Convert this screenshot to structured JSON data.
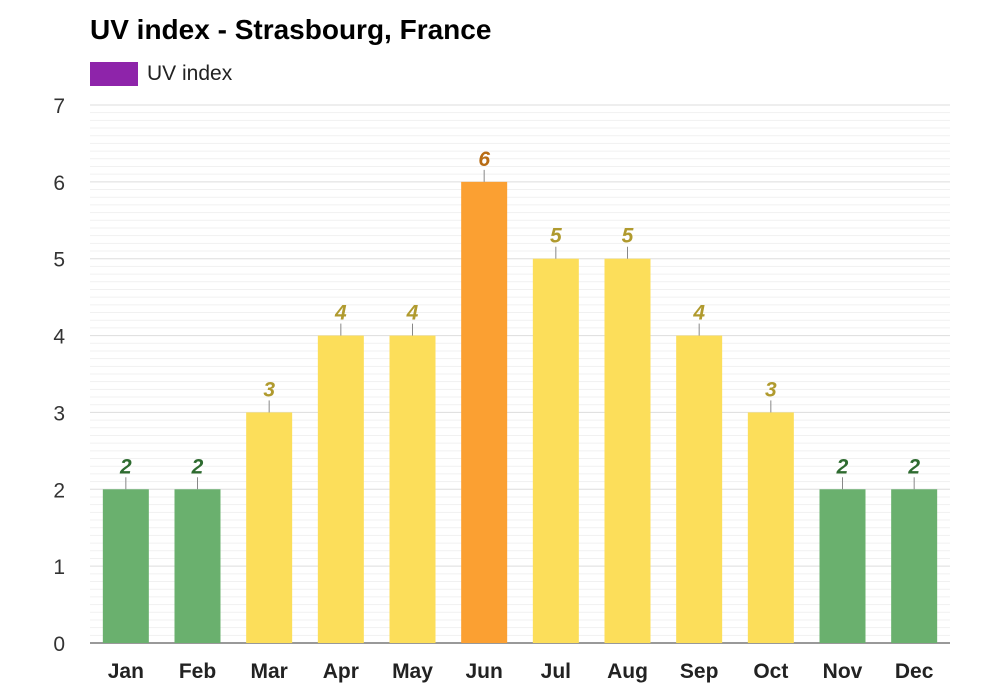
{
  "chart_data": {
    "type": "bar",
    "title": "UV index - Strasbourg, France",
    "legend": [
      {
        "name": "UV index",
        "color": "#8e24aa"
      }
    ],
    "legend_placement": "top-left",
    "categories": [
      "Jan",
      "Feb",
      "Mar",
      "Apr",
      "May",
      "Jun",
      "Jul",
      "Aug",
      "Sep",
      "Oct",
      "Nov",
      "Dec"
    ],
    "series": [
      {
        "name": "UV index",
        "values": [
          2,
          2,
          3,
          4,
          4,
          6,
          5,
          5,
          4,
          3,
          2,
          2
        ]
      }
    ],
    "ylim": [
      0,
      7
    ],
    "yticks": [
      0,
      1,
      2,
      3,
      4,
      5,
      6,
      7
    ],
    "grid": true,
    "colors": {
      "low": {
        "fill": "#6ab06e",
        "label": "#2e6b30"
      },
      "moderate": {
        "fill": "#fcde5a",
        "label": "#b09a2e"
      },
      "high": {
        "fill": "#fba032",
        "label": "#b86c14"
      }
    }
  }
}
